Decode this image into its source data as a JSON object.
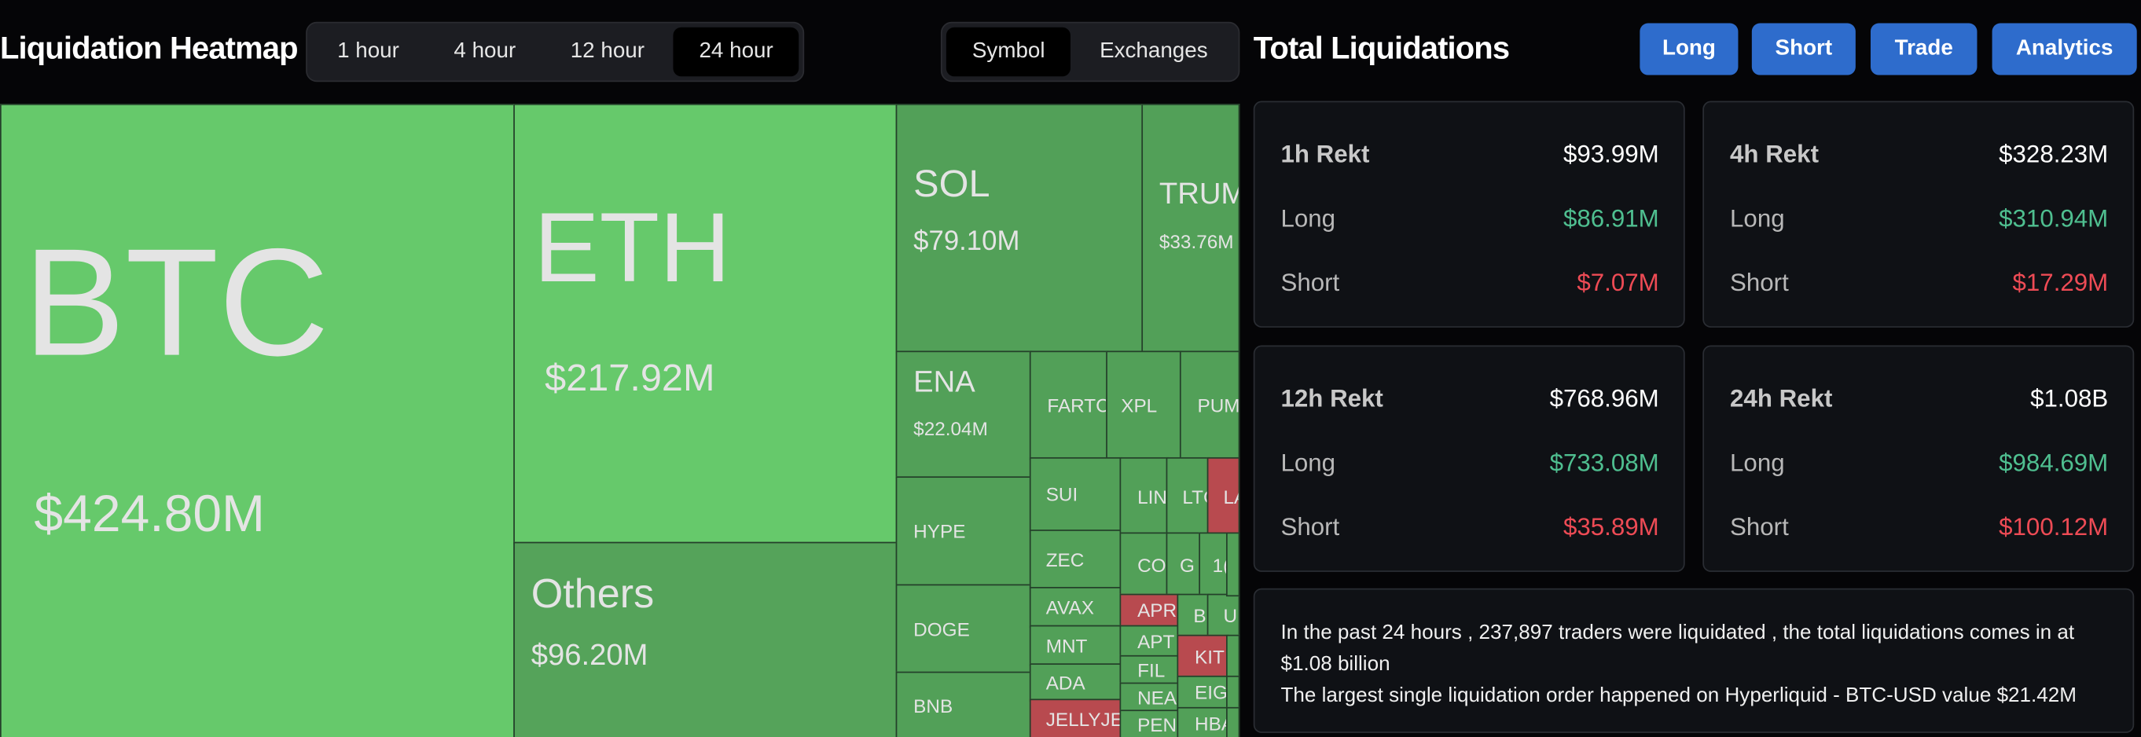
{
  "header": {
    "title": "Liquidation Heatmap",
    "time_tabs": [
      "1 hour",
      "4 hour",
      "12 hour",
      "24 hour"
    ],
    "view_tabs": [
      "Symbol",
      "Exchanges"
    ]
  },
  "treemap": {
    "cells": [
      {
        "label": "BTC",
        "value": "$424.80M"
      },
      {
        "label": "ETH",
        "value": "$217.92M"
      },
      {
        "label": "Others",
        "value": "$96.20M"
      },
      {
        "label": "SOL",
        "value": "$79.10M"
      },
      {
        "label": "TRUM",
        "value": "$33.76M"
      },
      {
        "label": "ENA",
        "value": "$22.04M"
      },
      {
        "label": "FARTC"
      },
      {
        "label": "XPL"
      },
      {
        "label": "PUM"
      },
      {
        "label": "HYPE"
      },
      {
        "label": "DOGE"
      },
      {
        "label": "BNB"
      },
      {
        "label": "SUI"
      },
      {
        "label": "ZEC"
      },
      {
        "label": "AVAX"
      },
      {
        "label": "MNT"
      },
      {
        "label": "ADA"
      },
      {
        "label": "JELLYJEL"
      },
      {
        "label": "LIN"
      },
      {
        "label": "LTC"
      },
      {
        "label": "LA"
      },
      {
        "label": "CO"
      },
      {
        "label": "G"
      },
      {
        "label": "1("
      },
      {
        "label": "APR"
      },
      {
        "label": "APT"
      },
      {
        "label": "FIL"
      },
      {
        "label": "NEA"
      },
      {
        "label": "PEN("
      },
      {
        "label": "B"
      },
      {
        "label": "U"
      },
      {
        "label": "KIT"
      },
      {
        "label": "EIG"
      },
      {
        "label": "HBA"
      }
    ]
  },
  "panel": {
    "title": "Total Liquidations",
    "buttons": [
      "Long",
      "Short",
      "Trade",
      "Analytics"
    ],
    "cards": [
      {
        "title": "1h Rekt",
        "total": "$93.99M",
        "long_label": "Long",
        "long": "$86.91M",
        "short_label": "Short",
        "short": "$7.07M"
      },
      {
        "title": "4h Rekt",
        "total": "$328.23M",
        "long_label": "Long",
        "long": "$310.94M",
        "short_label": "Short",
        "short": "$17.29M"
      },
      {
        "title": "12h Rekt",
        "total": "$768.96M",
        "long_label": "Long",
        "long": "$733.08M",
        "short_label": "Short",
        "short": "$35.89M"
      },
      {
        "title": "24h Rekt",
        "total": "$1.08B",
        "long_label": "Long",
        "long": "$984.69M",
        "short_label": "Short",
        "short": "$100.12M"
      }
    ],
    "summary": [
      "In the past 24 hours , 237,897 traders were liquidated , the total liquidations comes in at $1.08 billion",
      "The largest single liquidation order happened on Hyperliquid - BTC-USD value $21.42M"
    ]
  }
}
